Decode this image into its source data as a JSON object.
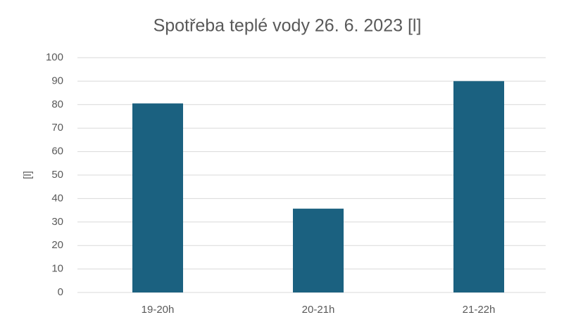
{
  "chart_data": {
    "type": "bar",
    "title": "Spotřeba teplé vody 26. 6. 2023 [l]",
    "y_label": "[l]",
    "categories": [
      "19-20h",
      "20-21h",
      "21-22h"
    ],
    "values": [
      80.5,
      35.7,
      90
    ],
    "color": "#1b6180",
    "ylim": [
      0,
      100
    ],
    "yticks": [
      0,
      10,
      20,
      30,
      40,
      50,
      60,
      70,
      80,
      90,
      100
    ],
    "grid": true
  }
}
